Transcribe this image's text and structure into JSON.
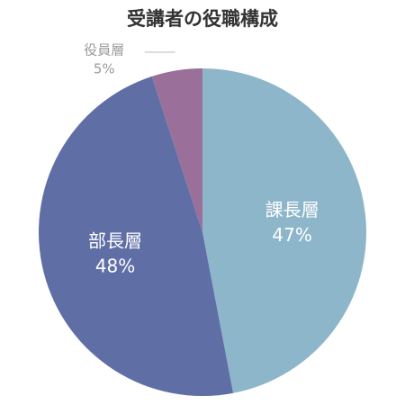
{
  "chart_data": {
    "type": "pie",
    "title": "受講者の役職構成",
    "categories": [
      "課長層",
      "部長層",
      "役員層"
    ],
    "values": [
      47,
      48,
      5
    ],
    "value_labels": [
      "47%",
      "48%",
      "5%"
    ],
    "colors": [
      "#8db6ca",
      "#5f6fa6",
      "#9a6f99"
    ]
  }
}
